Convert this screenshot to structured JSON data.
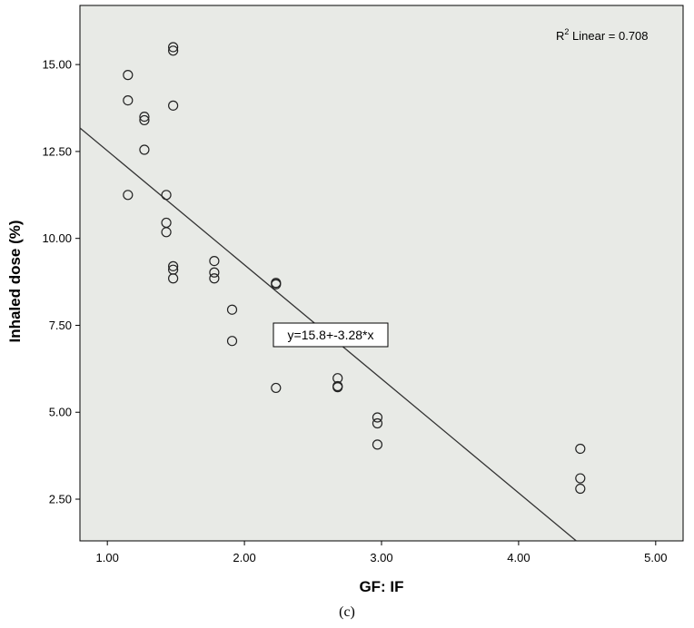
{
  "chart_data": {
    "type": "scatter",
    "xlabel": "GF: IF",
    "ylabel": "Inhaled dose (%)",
    "xlim": [
      0.8,
      5.2
    ],
    "ylim": [
      1.3,
      16.7
    ],
    "x_ticks": [
      1.0,
      2.0,
      3.0,
      4.0,
      5.0
    ],
    "x_tick_labels": [
      "1.00",
      "2.00",
      "3.00",
      "4.00",
      "5.00"
    ],
    "y_ticks": [
      2.5,
      5.0,
      7.5,
      10.0,
      12.5,
      15.0
    ],
    "y_tick_labels": [
      "2.50",
      "5.00",
      "7.50",
      "10.00",
      "12.50",
      "15.00"
    ],
    "grid": false,
    "background_color": "#e8eae6",
    "points": {
      "x": [
        1.15,
        1.15,
        1.15,
        1.27,
        1.27,
        1.27,
        1.43,
        1.43,
        1.43,
        1.48,
        1.48,
        1.48,
        1.48,
        1.48,
        1.48,
        1.78,
        1.78,
        1.78,
        1.91,
        1.91,
        2.23,
        2.23,
        2.23,
        2.68,
        2.68,
        2.68,
        2.97,
        2.97,
        2.97,
        4.45,
        4.45,
        4.45
      ],
      "y": [
        14.7,
        13.97,
        11.25,
        13.5,
        13.4,
        12.55,
        11.25,
        10.45,
        10.18,
        15.5,
        15.4,
        13.82,
        9.2,
        9.1,
        8.85,
        9.35,
        9.02,
        8.85,
        7.95,
        7.05,
        8.72,
        8.68,
        5.7,
        5.98,
        5.75,
        5.72,
        4.85,
        4.68,
        4.07,
        3.95,
        3.1,
        2.8
      ]
    },
    "fit_line": {
      "intercept": 15.8,
      "slope": -3.28
    },
    "r2_label": {
      "prefix": "R",
      "superscript": "2",
      "suffix": " Linear = 0.708"
    },
    "equation_label": "y=15.8+-3.28*x"
  },
  "caption": "(c)"
}
